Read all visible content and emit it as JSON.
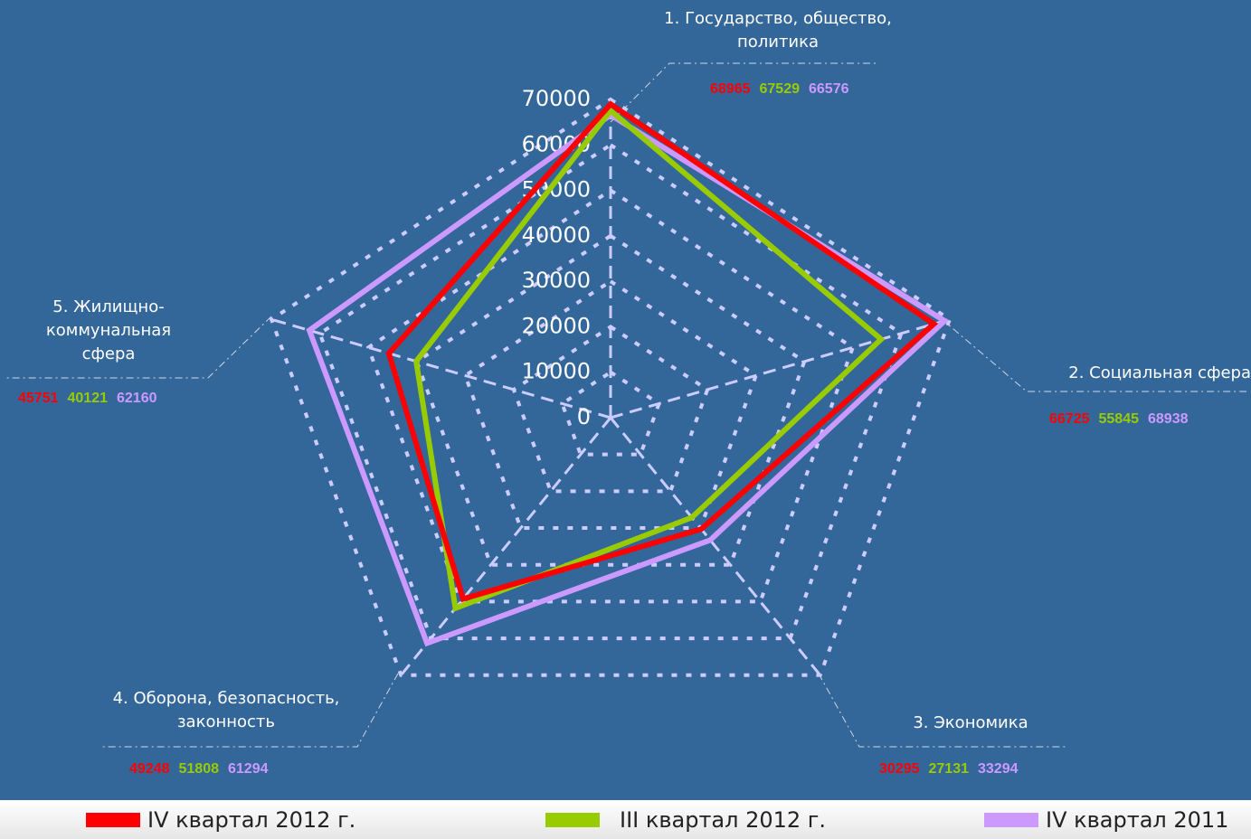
{
  "chart_data": {
    "type": "radar",
    "categories": [
      "1. Государство, общество, политика",
      "2. Социальная сфера",
      "3. Экономика",
      "4. Оборона, безопасность, законность",
      "5. Жилищно-коммунальная сфера"
    ],
    "series": [
      {
        "name": "IV квартал 2012 г.",
        "color": "#ff0000",
        "values": [
          68965,
          66725,
          30295,
          49248,
          45751
        ]
      },
      {
        "name": "III квартал 2012 г.",
        "color": "#99cc00",
        "values": [
          67529,
          55845,
          27131,
          51808,
          40121
        ]
      },
      {
        "name": "IV квартал 2011",
        "color": "#cc99ff",
        "values": [
          66576,
          68938,
          33294,
          61294,
          62160
        ]
      }
    ],
    "ylim": [
      0,
      70000
    ],
    "yticks": [
      0,
      10000,
      20000,
      30000,
      40000,
      50000,
      60000,
      70000
    ],
    "grid": true
  }
}
